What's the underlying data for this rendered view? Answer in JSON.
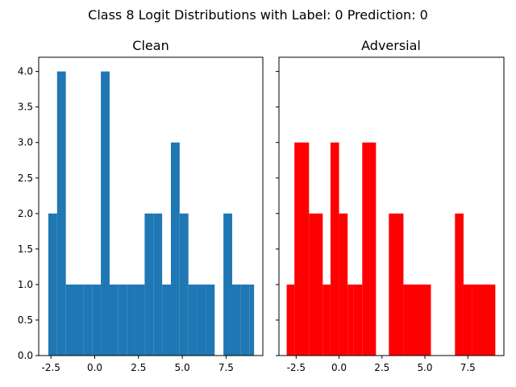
{
  "figure": {
    "suptitle": "Class 8 Logit Distributions with Label: 0 Prediction: 0"
  },
  "chart_data": [
    {
      "type": "bar",
      "title": "Clean",
      "xlabel": "",
      "ylabel": "",
      "color": "#1f77b4",
      "xlim": [
        -3.2,
        9.6
      ],
      "ylim": [
        0,
        4.2
      ],
      "xticks": [
        -2.5,
        0.0,
        2.5,
        5.0,
        7.5
      ],
      "xtick_labels": [
        "-2.5",
        "0.0",
        "2.5",
        "5.0",
        "7.5"
      ],
      "yticks": [
        0.0,
        0.5,
        1.0,
        1.5,
        2.0,
        2.5,
        3.0,
        3.5,
        4.0
      ],
      "ytick_labels": [
        "0.0",
        "0.5",
        "1.0",
        "1.5",
        "2.0",
        "2.5",
        "3.0",
        "3.5",
        "4.0"
      ],
      "bin_edges": [
        -2.65,
        -2.15,
        -1.65,
        -1.15,
        -0.65,
        -0.15,
        0.35,
        0.85,
        1.35,
        1.85,
        2.35,
        2.85,
        3.35,
        3.85,
        4.35,
        4.85,
        5.35,
        5.85,
        6.35,
        6.85,
        7.35,
        7.85,
        8.35,
        8.85,
        9.1
      ],
      "values": [
        2,
        4,
        1,
        1,
        1,
        1,
        4,
        1,
        1,
        1,
        1,
        2,
        2,
        1,
        3,
        2,
        1,
        1,
        1,
        0,
        2,
        1,
        1,
        1
      ],
      "grid": false,
      "legend": "none"
    },
    {
      "type": "bar",
      "title": "Adversial",
      "xlabel": "",
      "ylabel": "",
      "color": "#ff0000",
      "xlim": [
        -3.5,
        9.6
      ],
      "ylim": [
        0,
        4.2
      ],
      "xticks": [
        -2.5,
        0.0,
        2.5,
        5.0,
        7.5
      ],
      "xtick_labels": [
        "-2.5",
        "0.0",
        "2.5",
        "5.0",
        "7.5"
      ],
      "yticks": [
        0.0,
        0.5,
        1.0,
        1.5,
        2.0,
        2.5,
        3.0,
        3.5,
        4.0
      ],
      "ytick_labels": [],
      "bin_edges": [
        -3.05,
        -2.6,
        -1.75,
        -0.95,
        -0.5,
        0.0,
        0.5,
        0.85,
        1.35,
        2.15,
        2.55,
        2.9,
        3.75,
        5.35,
        6.75,
        7.25,
        7.75,
        9.1
      ],
      "values": [
        1,
        3,
        2,
        1,
        3,
        2,
        1,
        1,
        3,
        0,
        0,
        2,
        1,
        0,
        2,
        1,
        1
      ],
      "grid": false,
      "legend": "none"
    }
  ]
}
